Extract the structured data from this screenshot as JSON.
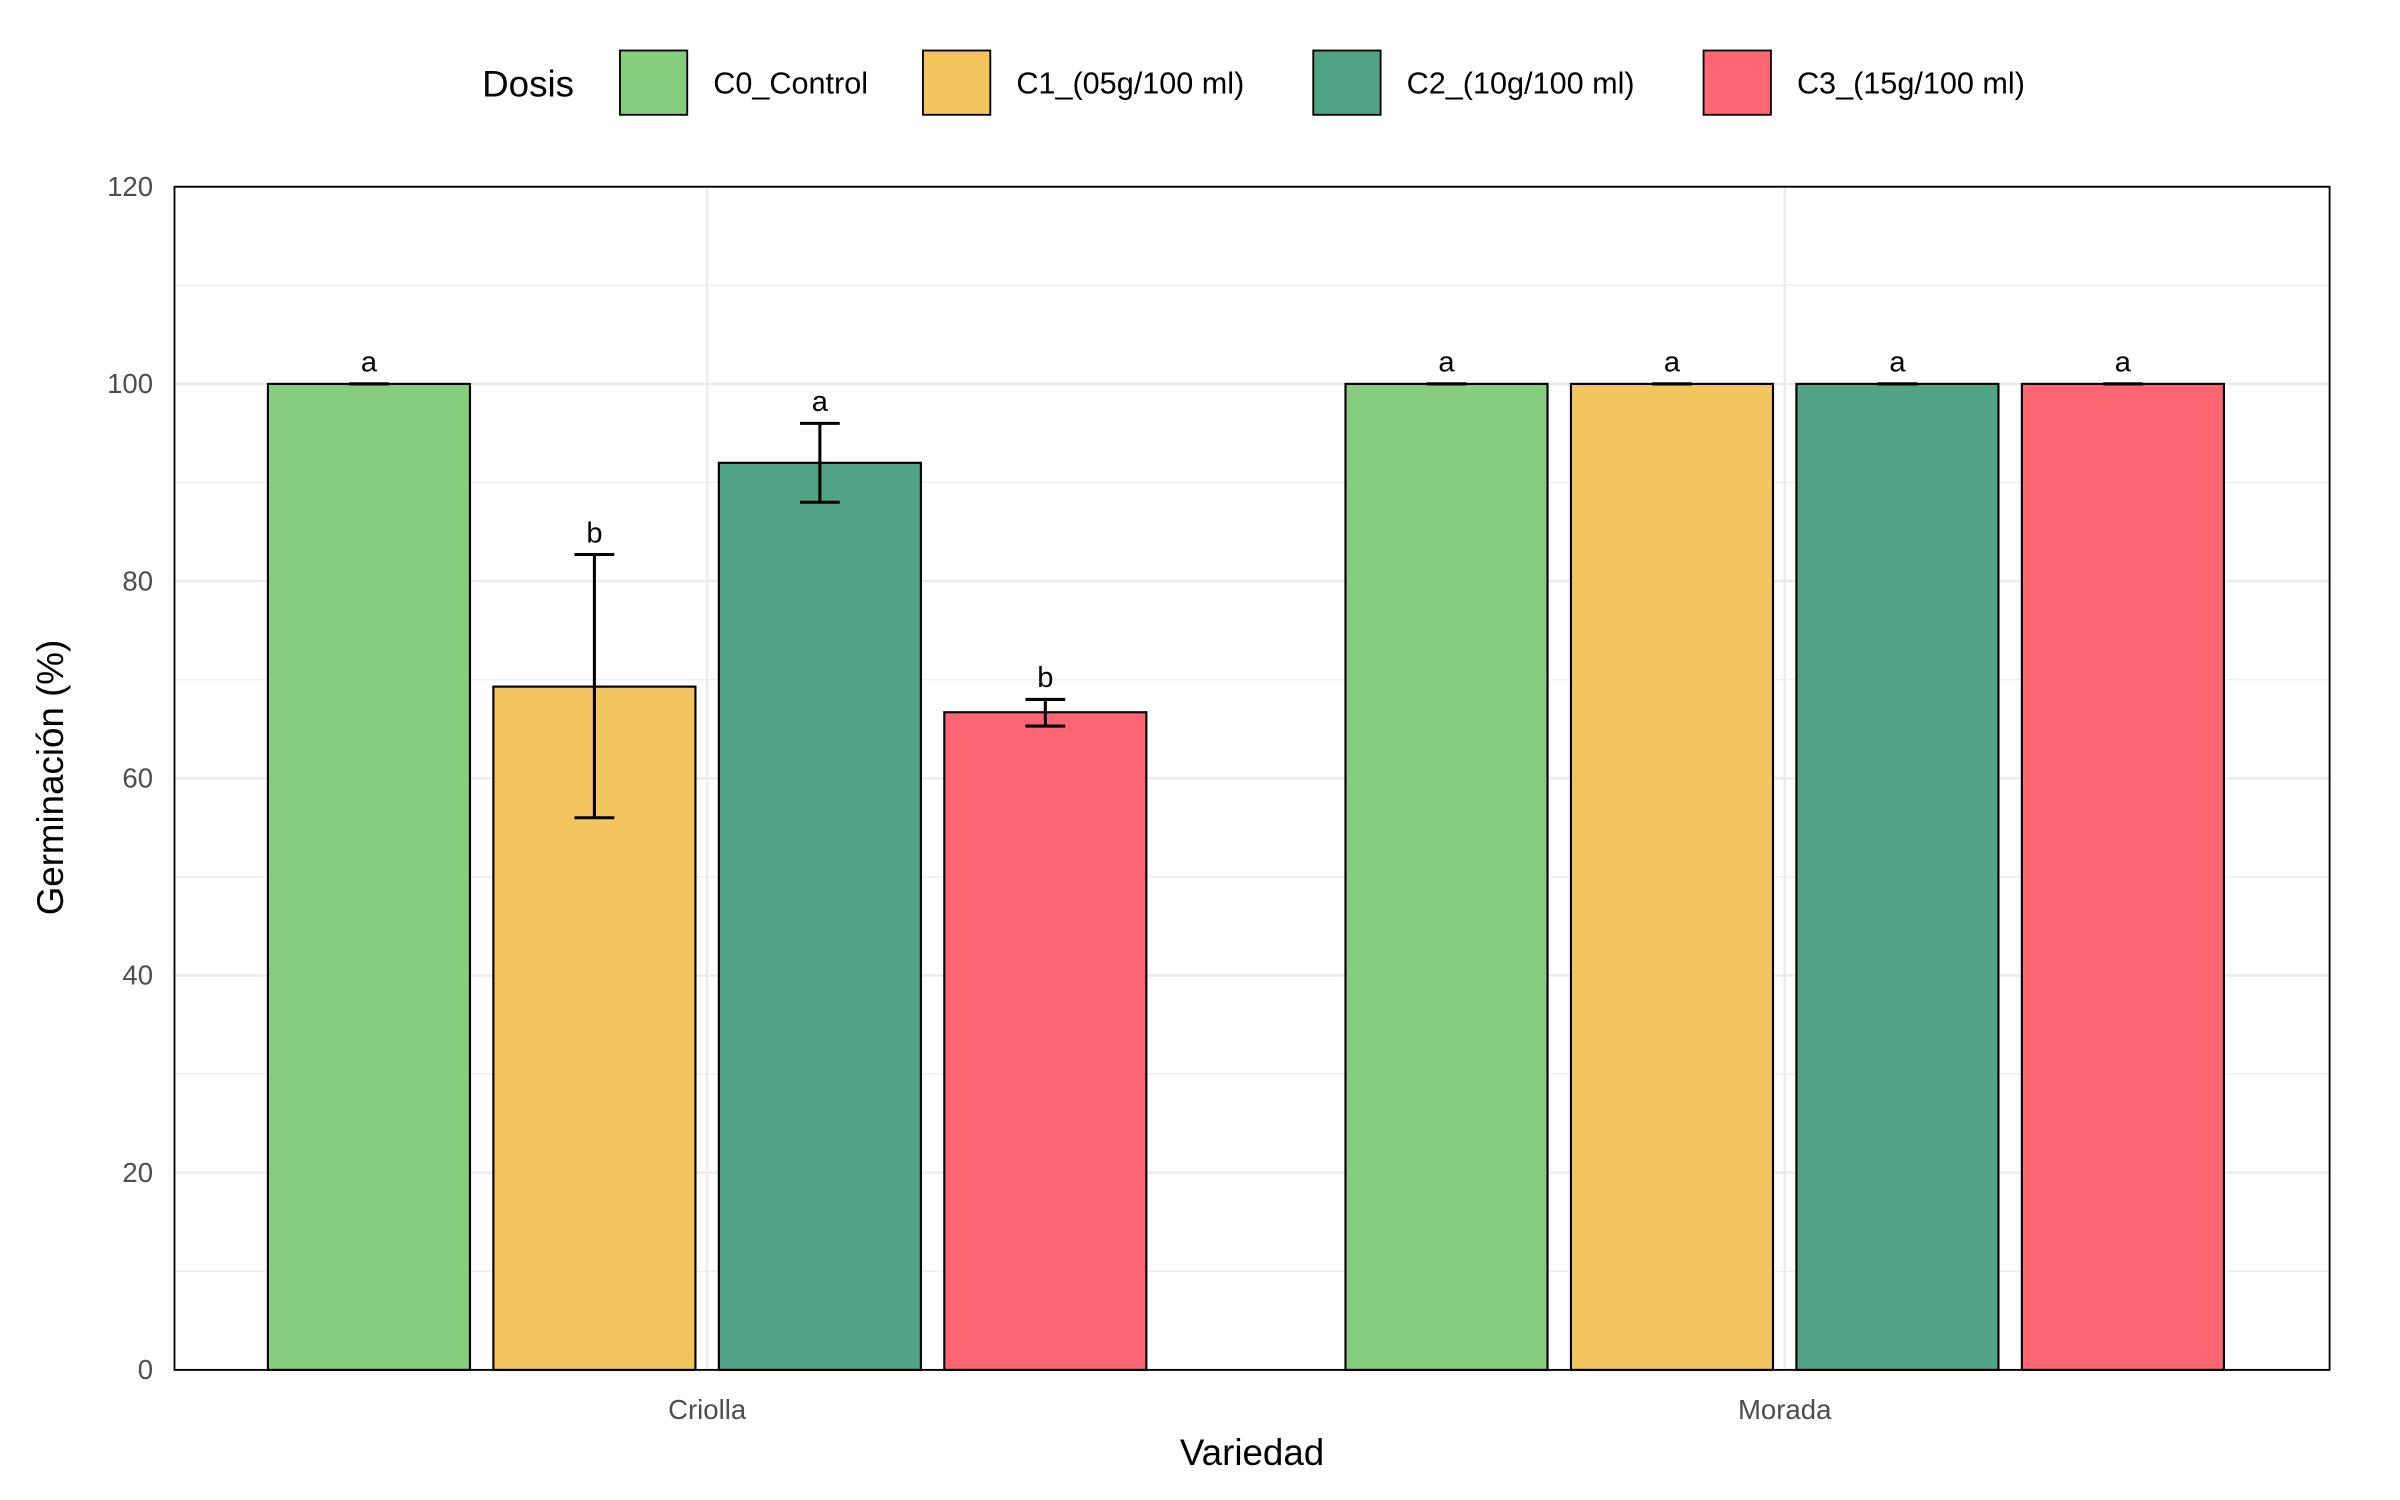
{
  "chart_data": {
    "type": "bar",
    "xlabel": "Variedad",
    "ylabel": "Germinación (%)",
    "ylim": [
      0,
      120
    ],
    "yticks": [
      0,
      20,
      40,
      60,
      80,
      100,
      120
    ],
    "grid": true,
    "legend": {
      "title": "Dosis",
      "placement": "top"
    },
    "categories": [
      "Criolla",
      "Morada"
    ],
    "series": [
      {
        "name": "C0_Control",
        "color": "#86CD7D",
        "values": [
          100,
          100
        ],
        "err_low": [
          100,
          100
        ],
        "err_high": [
          100,
          100
        ],
        "letters": [
          "a",
          "a"
        ]
      },
      {
        "name": "C1_(05g/100 ml)",
        "color": "#F3C55E",
        "values": [
          69.3,
          100
        ],
        "err_low": [
          56.0,
          100
        ],
        "err_high": [
          82.7,
          100
        ],
        "letters": [
          "b",
          "a"
        ]
      },
      {
        "name": "C2_(10g/100 ml)",
        "color": "#51A386",
        "values": [
          92.0,
          100
        ],
        "err_low": [
          88.0,
          100
        ],
        "err_high": [
          96.0,
          100
        ],
        "letters": [
          "a",
          "a"
        ]
      },
      {
        "name": "C3_(15g/100 ml)",
        "color": "#FF6673",
        "values": [
          66.7,
          100
        ],
        "err_low": [
          65.3,
          100
        ],
        "err_high": [
          68.0,
          100
        ],
        "letters": [
          "b",
          "a"
        ]
      }
    ]
  }
}
